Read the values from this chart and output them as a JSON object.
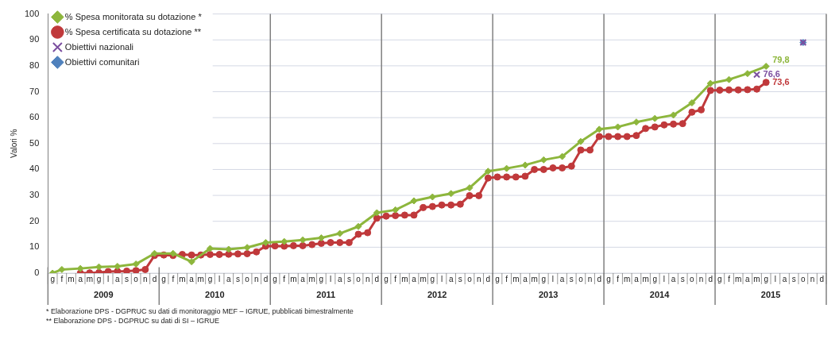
{
  "chart_data": {
    "type": "line",
    "ylabel": "Valori %",
    "categories": [
      "g",
      "f",
      "m",
      "a",
      "m",
      "g",
      "l",
      "a",
      "s",
      "o",
      "n",
      "d",
      "g",
      "f",
      "m",
      "a",
      "m",
      "g",
      "l",
      "a",
      "s",
      "o",
      "n",
      "d",
      "g",
      "f",
      "m",
      "a",
      "m",
      "g",
      "l",
      "a",
      "s",
      "o",
      "n",
      "d",
      "g",
      "f",
      "m",
      "a",
      "m",
      "g",
      "l",
      "a",
      "s",
      "o",
      "n",
      "d",
      "g",
      "f",
      "m",
      "a",
      "m",
      "g",
      "l",
      "a",
      "s",
      "o",
      "n",
      "d",
      "g",
      "f",
      "m",
      "a",
      "m",
      "g",
      "l",
      "a",
      "s",
      "o",
      "n",
      "d",
      "g",
      "f",
      "m",
      "a",
      "m",
      "g",
      "l",
      "a",
      "s",
      "o",
      "n",
      "d"
    ],
    "series": [
      {
        "name": "% Spesa monitorata su dotazione *",
        "type": "line",
        "marker": "diamond",
        "color": "#8db63c",
        "values": [
          0,
          1.4,
          null,
          1.8,
          null,
          2.4,
          null,
          2.6,
          null,
          3.5,
          null,
          7.6,
          null,
          7.6,
          null,
          4.4,
          null,
          9.5,
          null,
          9.2,
          null,
          9.9,
          null,
          11.8,
          null,
          12.2,
          null,
          12.8,
          null,
          13.6,
          null,
          15.3,
          null,
          18.0,
          null,
          23.3,
          null,
          24.4,
          null,
          27.9,
          null,
          29.4,
          null,
          30.7,
          null,
          32.9,
          null,
          39.3,
          null,
          40.4,
          null,
          41.7,
          null,
          43.7,
          null,
          45.0,
          null,
          50.8,
          null,
          55.5,
          null,
          56.4,
          null,
          58.3,
          null,
          59.7,
          null,
          61.0,
          null,
          65.7,
          null,
          73.2,
          null,
          74.7,
          null,
          77.0,
          null,
          79.8,
          null,
          null,
          null,
          null,
          null,
          null
        ],
        "value_labels": [
          null,
          null,
          null,
          null,
          null,
          null,
          null,
          null,
          null,
          null,
          null,
          null,
          null,
          null,
          null,
          null,
          null,
          null,
          null,
          null,
          null,
          null,
          null,
          null,
          null,
          null,
          null,
          null,
          null,
          null,
          null,
          null,
          null,
          null,
          null,
          null,
          null,
          null,
          null,
          null,
          null,
          null,
          null,
          null,
          null,
          null,
          null,
          null,
          null,
          null,
          null,
          null,
          null,
          null,
          null,
          null,
          null,
          null,
          null,
          null,
          null,
          null,
          null,
          null,
          null,
          null,
          null,
          null,
          null,
          null,
          null,
          null,
          null,
          null,
          null,
          null,
          null,
          "79,8",
          null,
          null,
          null,
          null,
          null,
          null
        ]
      },
      {
        "name": "% Spesa certificata su dotazione **",
        "type": "line",
        "marker": "circle",
        "color": "#c0393b",
        "values": [
          null,
          null,
          null,
          0,
          0.1,
          0.2,
          0.6,
          0.7,
          0.8,
          1.0,
          1.4,
          6.8,
          7.0,
          6.8,
          7.2,
          7.0,
          7.0,
          7.2,
          7.2,
          7.3,
          7.4,
          7.5,
          8.2,
          10.4,
          10.5,
          10.4,
          10.6,
          10.6,
          11.0,
          11.5,
          11.8,
          11.8,
          11.8,
          15.0,
          15.6,
          21.2,
          22.0,
          22.2,
          22.4,
          22.4,
          25.3,
          25.7,
          26.3,
          26.3,
          26.6,
          29.9,
          29.9,
          36.7,
          37.1,
          37.1,
          37.1,
          37.4,
          40.0,
          40.0,
          40.6,
          40.6,
          41.3,
          47.5,
          47.5,
          52.7,
          52.7,
          52.7,
          52.7,
          53.1,
          55.8,
          56.4,
          57.2,
          57.5,
          57.7,
          62.1,
          63.0,
          70.5,
          70.6,
          70.7,
          70.7,
          70.8,
          71.0,
          73.6,
          null,
          null,
          null,
          null,
          null,
          null
        ],
        "value_labels": [
          null,
          null,
          null,
          null,
          null,
          null,
          null,
          null,
          null,
          null,
          null,
          null,
          null,
          null,
          null,
          null,
          null,
          null,
          null,
          null,
          null,
          null,
          null,
          null,
          null,
          null,
          null,
          null,
          null,
          null,
          null,
          null,
          null,
          null,
          null,
          null,
          null,
          null,
          null,
          null,
          null,
          null,
          null,
          null,
          null,
          null,
          null,
          null,
          null,
          null,
          null,
          null,
          null,
          null,
          null,
          null,
          null,
          null,
          null,
          null,
          null,
          null,
          null,
          null,
          null,
          null,
          null,
          null,
          null,
          null,
          null,
          null,
          null,
          null,
          null,
          null,
          null,
          "73,6",
          null,
          null,
          null,
          null,
          null,
          null
        ]
      },
      {
        "name": "Obiettivi nazionali",
        "type": "scatter",
        "marker": "cross",
        "color": "#7b4fa0",
        "values": [
          null,
          null,
          null,
          null,
          null,
          null,
          null,
          null,
          null,
          null,
          null,
          null,
          null,
          null,
          null,
          null,
          null,
          null,
          null,
          null,
          null,
          null,
          null,
          null,
          null,
          null,
          null,
          null,
          null,
          null,
          null,
          null,
          null,
          null,
          null,
          null,
          null,
          null,
          null,
          null,
          null,
          null,
          null,
          null,
          null,
          null,
          null,
          null,
          null,
          null,
          null,
          null,
          null,
          null,
          null,
          null,
          null,
          null,
          null,
          null,
          null,
          null,
          null,
          null,
          null,
          null,
          null,
          null,
          null,
          null,
          null,
          null,
          null,
          null,
          null,
          null,
          76.6,
          null,
          null,
          null,
          null,
          89,
          null,
          null
        ],
        "value_labels": [
          null,
          null,
          null,
          null,
          null,
          null,
          null,
          null,
          null,
          null,
          null,
          null,
          null,
          null,
          null,
          null,
          null,
          null,
          null,
          null,
          null,
          null,
          null,
          null,
          null,
          null,
          null,
          null,
          null,
          null,
          null,
          null,
          null,
          null,
          null,
          null,
          null,
          null,
          null,
          null,
          null,
          null,
          null,
          null,
          null,
          null,
          null,
          null,
          null,
          null,
          null,
          null,
          null,
          null,
          null,
          null,
          null,
          null,
          null,
          null,
          null,
          null,
          null,
          null,
          null,
          null,
          null,
          null,
          null,
          null,
          null,
          null,
          null,
          null,
          null,
          null,
          "76,6",
          null,
          null,
          null,
          null,
          null,
          null,
          null
        ]
      },
      {
        "name": "Obiettivi comunitari",
        "type": "scatter",
        "marker": "diamond",
        "color": "#4f81bd",
        "values": [
          null,
          null,
          null,
          null,
          null,
          null,
          null,
          null,
          null,
          null,
          null,
          null,
          null,
          null,
          null,
          null,
          null,
          null,
          null,
          null,
          null,
          null,
          null,
          null,
          null,
          null,
          null,
          null,
          null,
          null,
          null,
          null,
          null,
          null,
          null,
          null,
          null,
          null,
          null,
          null,
          null,
          null,
          null,
          null,
          null,
          null,
          null,
          null,
          null,
          null,
          null,
          null,
          null,
          null,
          null,
          null,
          null,
          null,
          null,
          null,
          null,
          null,
          null,
          null,
          null,
          null,
          null,
          null,
          null,
          null,
          null,
          null,
          null,
          null,
          null,
          null,
          null,
          null,
          null,
          null,
          null,
          89,
          null,
          null
        ]
      }
    ],
    "ylim": [
      0,
      100
    ],
    "yticks": [
      0,
      10,
      20,
      30,
      40,
      50,
      60,
      70,
      80,
      90,
      100
    ],
    "grid": "y",
    "legend": "top left",
    "annotations": [
      "2009",
      "2010",
      "2011",
      "2012",
      "2013",
      "2014",
      "2015",
      "*    Elaborazione DPS - DGPRUC su dati di monitoraggio MEF – IGRUE, pubblicati bimestralmente",
      "** Elaborazione DPS - DGPRUC su dati di SI – IGRUE"
    ]
  }
}
